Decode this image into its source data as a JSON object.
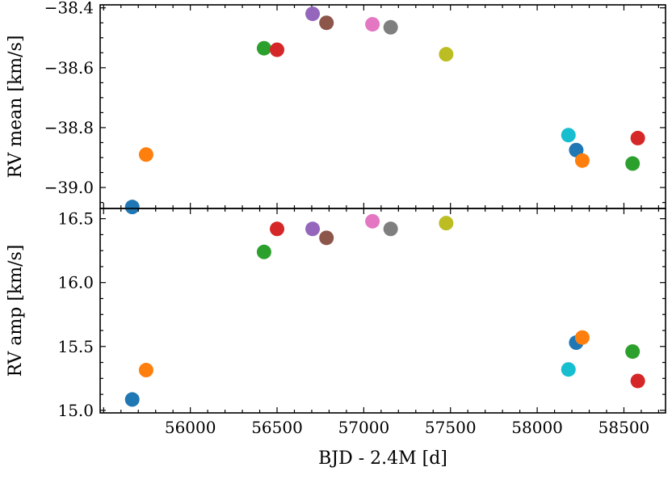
{
  "chart_data": [
    {
      "type": "scatter",
      "panel": "top",
      "ylabel": "RV mean [km/s]",
      "xlim": [
        55480,
        58740
      ],
      "ylim": [
        -39.07,
        -38.39
      ],
      "y_ticks": [
        -39.0,
        -38.8,
        -38.6,
        -38.4
      ],
      "y_tick_labels": [
        "−39.0",
        "−38.8",
        "−38.6",
        "−38.4"
      ],
      "grid": false,
      "points": [
        {
          "x": 55665,
          "y": -39.065,
          "color": "#1f77b4"
        },
        {
          "x": 55745,
          "y": -38.89,
          "color": "#ff7f0e"
        },
        {
          "x": 56425,
          "y": -38.535,
          "color": "#2ca02c"
        },
        {
          "x": 56500,
          "y": -38.54,
          "color": "#d62728"
        },
        {
          "x": 56705,
          "y": -38.42,
          "color": "#9467bd"
        },
        {
          "x": 56785,
          "y": -38.45,
          "color": "#8c564b"
        },
        {
          "x": 57050,
          "y": -38.455,
          "color": "#e377c2"
        },
        {
          "x": 57155,
          "y": -38.465,
          "color": "#7f7f7f"
        },
        {
          "x": 57475,
          "y": -38.555,
          "color": "#bcbd22"
        },
        {
          "x": 58180,
          "y": -38.825,
          "color": "#17becf"
        },
        {
          "x": 58225,
          "y": -38.875,
          "color": "#1f77b4"
        },
        {
          "x": 58260,
          "y": -38.91,
          "color": "#ff7f0e"
        },
        {
          "x": 58550,
          "y": -38.92,
          "color": "#2ca02c"
        },
        {
          "x": 58580,
          "y": -38.835,
          "color": "#d62728"
        }
      ]
    },
    {
      "type": "scatter",
      "panel": "bottom",
      "ylabel": "RV amp [km/s]",
      "xlabel": "BJD - 2.4M [d]",
      "xlim": [
        55480,
        58740
      ],
      "ylim": [
        14.98,
        16.58
      ],
      "x_ticks": [
        56000,
        56500,
        57000,
        57500,
        58000,
        58500
      ],
      "x_tick_labels": [
        "56000",
        "56500",
        "57000",
        "57500",
        "58000",
        "58500"
      ],
      "y_ticks": [
        15.0,
        15.5,
        16.0,
        16.5
      ],
      "y_tick_labels": [
        "15.0",
        "15.5",
        "16.0",
        "16.5"
      ],
      "grid": false,
      "points": [
        {
          "x": 55665,
          "y": 15.085,
          "color": "#1f77b4"
        },
        {
          "x": 55745,
          "y": 15.315,
          "color": "#ff7f0e"
        },
        {
          "x": 56425,
          "y": 16.24,
          "color": "#2ca02c"
        },
        {
          "x": 56500,
          "y": 16.42,
          "color": "#d62728"
        },
        {
          "x": 56705,
          "y": 16.42,
          "color": "#9467bd"
        },
        {
          "x": 56785,
          "y": 16.35,
          "color": "#8c564b"
        },
        {
          "x": 57050,
          "y": 16.48,
          "color": "#e377c2"
        },
        {
          "x": 57155,
          "y": 16.42,
          "color": "#7f7f7f"
        },
        {
          "x": 57475,
          "y": 16.465,
          "color": "#bcbd22"
        },
        {
          "x": 58180,
          "y": 15.32,
          "color": "#17becf"
        },
        {
          "x": 58225,
          "y": 15.53,
          "color": "#1f77b4"
        },
        {
          "x": 58260,
          "y": 15.57,
          "color": "#ff7f0e"
        },
        {
          "x": 58550,
          "y": 15.46,
          "color": "#2ca02c"
        },
        {
          "x": 58580,
          "y": 15.23,
          "color": "#d62728"
        }
      ]
    }
  ]
}
